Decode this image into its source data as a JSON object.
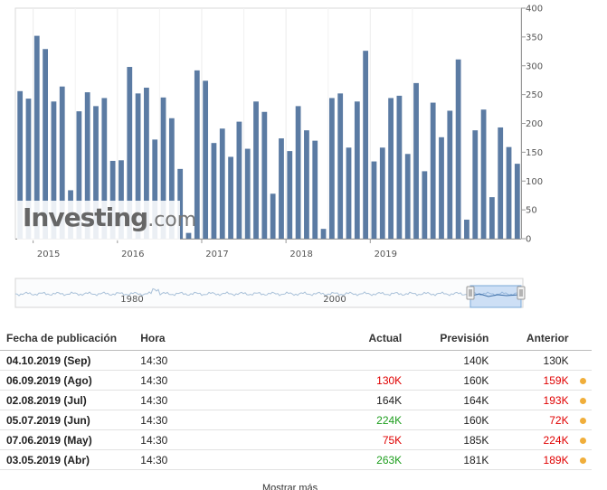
{
  "chart_data": {
    "type": "bar",
    "color": "#5b7ba3",
    "ylim": [
      0,
      400
    ],
    "y_ticks": [
      0,
      50,
      100,
      150,
      200,
      250,
      300,
      350,
      400
    ],
    "x_ticks": [
      "2015",
      "2016",
      "2017",
      "2018",
      "2019"
    ],
    "x_tick_after_index": [
      1,
      11,
      21,
      31,
      41
    ],
    "values": [
      256,
      243,
      352,
      329,
      238,
      264,
      84,
      221,
      254,
      230,
      244,
      135,
      136,
      298,
      252,
      262,
      172,
      245,
      209,
      121,
      10,
      292,
      274,
      166,
      191,
      142,
      203,
      156,
      238,
      220,
      78,
      174,
      152,
      230,
      188,
      170,
      17,
      244,
      252,
      158,
      238,
      326,
      134,
      158,
      244,
      248,
      147,
      270,
      117,
      236,
      176,
      222,
      311,
      33,
      188,
      224,
      72,
      193,
      159,
      130
    ]
  },
  "watermark": {
    "brand": "Investing",
    "suffix": ".com"
  },
  "navigator": {
    "labels": [
      "1980",
      "2000"
    ]
  },
  "table": {
    "headers": {
      "date": "Fecha de publicación",
      "time": "Hora",
      "actual": "Actual",
      "forecast": "Previsión",
      "previous": "Anterior"
    },
    "rows": [
      {
        "date": "04.10.2019 (Sep)",
        "time": "14:30",
        "actual": "",
        "actual_state": "neu",
        "forecast": "140K",
        "previous": "130K",
        "previous_state": "neu",
        "dot": false
      },
      {
        "date": "06.09.2019 (Ago)",
        "time": "14:30",
        "actual": "130K",
        "actual_state": "neg",
        "forecast": "160K",
        "previous": "159K",
        "previous_state": "neg",
        "dot": true
      },
      {
        "date": "02.08.2019 (Jul)",
        "time": "14:30",
        "actual": "164K",
        "actual_state": "neu",
        "forecast": "164K",
        "previous": "193K",
        "previous_state": "neg",
        "dot": true
      },
      {
        "date": "05.07.2019 (Jun)",
        "time": "14:30",
        "actual": "224K",
        "actual_state": "pos",
        "forecast": "160K",
        "previous": "72K",
        "previous_state": "neg",
        "dot": true
      },
      {
        "date": "07.06.2019 (May)",
        "time": "14:30",
        "actual": "75K",
        "actual_state": "neg",
        "forecast": "185K",
        "previous": "224K",
        "previous_state": "neg",
        "dot": true
      },
      {
        "date": "03.05.2019 (Abr)",
        "time": "14:30",
        "actual": "263K",
        "actual_state": "pos",
        "forecast": "181K",
        "previous": "189K",
        "previous_state": "neg",
        "dot": true
      }
    ]
  },
  "more_link": "Mostrar más"
}
